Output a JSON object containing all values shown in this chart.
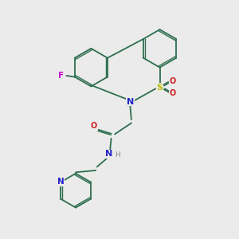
{
  "background_color": "#ebebeb",
  "bond_color": "#2d6e4e",
  "F_color": "#cc00cc",
  "N_color": "#2222cc",
  "O_color": "#cc2222",
  "S_color": "#bbbb00",
  "H_color": "#888888",
  "figsize": [
    3.0,
    3.0
  ],
  "dpi": 100,
  "xlim": [
    0,
    10
  ],
  "ylim": [
    0,
    10
  ]
}
